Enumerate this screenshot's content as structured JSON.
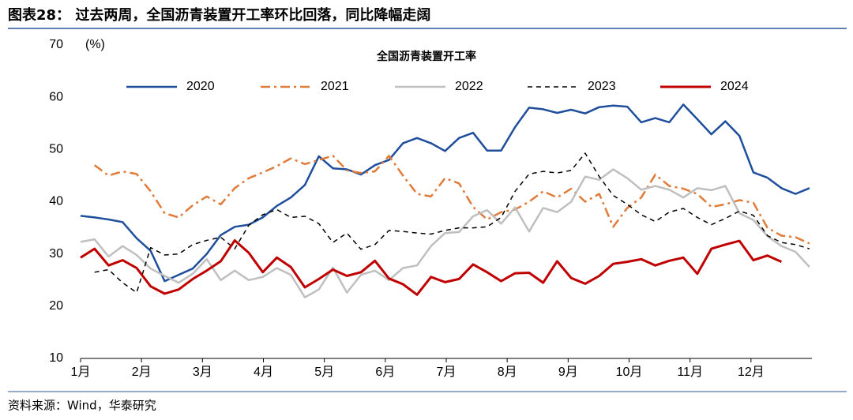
{
  "header": {
    "title": "图表28： 过去两周，全国沥青装置开工率环比回落，同比降幅走阔"
  },
  "chart_data": {
    "type": "line",
    "title": "全国沥青装置开工率",
    "y_label": "(%)",
    "x": [
      1,
      1.23,
      1.46,
      1.69,
      1.92,
      2.15,
      2.38,
      2.61,
      2.84,
      3.07,
      3.3,
      3.53,
      3.76,
      3.99,
      4.22,
      4.45,
      4.68,
      4.91,
      5.14,
      5.37,
      5.6,
      5.83,
      6.06,
      6.29,
      6.52,
      6.75,
      6.98,
      7.21,
      7.44,
      7.67,
      7.9,
      8.13,
      8.36,
      8.59,
      8.82,
      9.05,
      9.28,
      9.51,
      9.74,
      9.97,
      10.2,
      10.43,
      10.66,
      10.89,
      11.12,
      11.35,
      11.58,
      11.81,
      12.04,
      12.27,
      12.5,
      12.73,
      12.96
    ],
    "xlim": [
      1,
      13
    ],
    "xticks": [
      {
        "value": 1,
        "label": "1月"
      },
      {
        "value": 2,
        "label": "2月"
      },
      {
        "value": 3,
        "label": "3月"
      },
      {
        "value": 4,
        "label": "4月"
      },
      {
        "value": 5,
        "label": "5月"
      },
      {
        "value": 6,
        "label": "6月"
      },
      {
        "value": 7,
        "label": "7月"
      },
      {
        "value": 8,
        "label": "8月"
      },
      {
        "value": 9,
        "label": "9月"
      },
      {
        "value": 10,
        "label": "10月"
      },
      {
        "value": 11,
        "label": "11月"
      },
      {
        "value": 12,
        "label": "12月"
      }
    ],
    "ylim": [
      10,
      70
    ],
    "yticks": [
      10,
      20,
      30,
      40,
      50,
      60,
      70
    ],
    "series": [
      {
        "name": "2020",
        "color": "#1f4e9c",
        "dash": "solid",
        "width": 2.5,
        "values": [
          37.3,
          37,
          36.6,
          36.1,
          33,
          30.6,
          24.8,
          26,
          27.2,
          30,
          33.6,
          35.2,
          35.6,
          37,
          39.2,
          40.8,
          43.2,
          48.7,
          46.4,
          46.2,
          45.2,
          47,
          48,
          51.2,
          52.2,
          51.2,
          49.7,
          52.2,
          53.2,
          49.8,
          49.8,
          54.3,
          58,
          57.7,
          57,
          57.6,
          56.9,
          58.1,
          58.4,
          58.2,
          55.2,
          56,
          55.2,
          58.6,
          55.8,
          52.9,
          55.4,
          52.6,
          45.6,
          44.6,
          42.6,
          41.5,
          42.6
        ]
      },
      {
        "name": "2021",
        "color": "#e07b39",
        "dash": "dashdot",
        "width": 2.5,
        "values": [
          null,
          47,
          45,
          45.8,
          45.3,
          42,
          37.8,
          37,
          39.3,
          41,
          39.5,
          42.6,
          44.5,
          45.6,
          46.8,
          48.3,
          47.2,
          48,
          48.8,
          46,
          45.5,
          45.8,
          48.8,
          45,
          41.5,
          41,
          44.5,
          43.5,
          39,
          36.6,
          38,
          38.5,
          40,
          42,
          40.8,
          42.5,
          40,
          41.5,
          35.2,
          38.8,
          40.8,
          45.2,
          43,
          42.5,
          41.5,
          39,
          39.5,
          40.3,
          39.8,
          35,
          33.5,
          33.2,
          32
        ]
      },
      {
        "name": "2022",
        "color": "#bfbfbf",
        "dash": "solid",
        "width": 2.5,
        "values": [
          32.3,
          32.8,
          29.5,
          31.5,
          29.8,
          27.2,
          25.8,
          24.5,
          26.2,
          29,
          25,
          26.8,
          25,
          25.6,
          27.3,
          26,
          21.7,
          23.2,
          27.4,
          22.6,
          26,
          26.8,
          25,
          27.3,
          27.8,
          31.5,
          34,
          34.2,
          37.2,
          38.4,
          35.8,
          38.9,
          34.3,
          38.8,
          38,
          40,
          44.8,
          44.2,
          46.2,
          44.5,
          42.3,
          43,
          42.3,
          40.8,
          42.6,
          42.2,
          43,
          37.8,
          36.5,
          33.4,
          31.5,
          30.4,
          27.5
        ]
      },
      {
        "name": "2023",
        "color": "#000000",
        "dash": "dashed",
        "width": 1.5,
        "values": [
          null,
          26.5,
          27,
          24.5,
          22.6,
          31.2,
          29.8,
          30,
          31.8,
          32.6,
          33.2,
          31,
          35.5,
          37.5,
          38.5,
          37,
          37.2,
          35.8,
          32.2,
          34,
          30.9,
          31.8,
          34.5,
          34.3,
          34,
          33.8,
          34.5,
          35,
          35,
          35.2,
          37,
          42,
          45.3,
          45.8,
          45.5,
          46,
          49.3,
          44.8,
          41.2,
          39.5,
          37.5,
          36.2,
          38,
          38.7,
          37,
          35.6,
          36.8,
          38.2,
          37.4,
          33.5,
          32.2,
          31.8,
          31
        ]
      },
      {
        "name": "2024",
        "color": "#c00000",
        "dash": "solid",
        "width": 3,
        "values": [
          29.3,
          31,
          27.8,
          28.8,
          27.3,
          23.8,
          22.4,
          23.2,
          25.2,
          26.8,
          28.6,
          32.6,
          30.2,
          26.5,
          29.3,
          27.5,
          23.6,
          25.2,
          27,
          25.8,
          26.5,
          28.7,
          25.3,
          24.2,
          22.2,
          25.6,
          24.6,
          25.2,
          28,
          26.5,
          24.8,
          26.3,
          26.4,
          24.5,
          28.6,
          25.4,
          24.3,
          25.8,
          28.1,
          28.5,
          29,
          27.8,
          28.7,
          29.3,
          26.2,
          31,
          31.8,
          32.5,
          28.8,
          29.7,
          28.5,
          null,
          null
        ]
      }
    ]
  },
  "footer": {
    "source": "资料来源：Wind，华泰研究"
  }
}
